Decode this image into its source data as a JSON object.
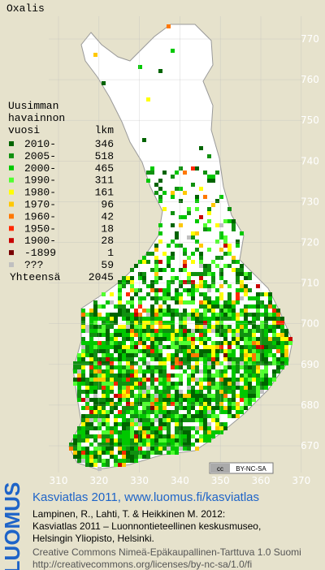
{
  "title": "Oxalis",
  "legend": {
    "header": [
      "Uusimman",
      "havainnon",
      "vuosi"
    ],
    "count_header": "lkm",
    "entries": [
      {
        "label": "2010-",
        "count": 346,
        "color": "#006400"
      },
      {
        "label": "2005-",
        "count": 518,
        "color": "#109010"
      },
      {
        "label": "2000-",
        "count": 465,
        "color": "#00c800"
      },
      {
        "label": "1990-",
        "count": 311,
        "color": "#50ff30"
      },
      {
        "label": "1980-",
        "count": 161,
        "color": "#ffff00"
      },
      {
        "label": "1970-",
        "count": 96,
        "color": "#ffc800"
      },
      {
        "label": "1960-",
        "count": 42,
        "color": "#ff7800"
      },
      {
        "label": "1950-",
        "count": 18,
        "color": "#ff2800"
      },
      {
        "label": "1900-",
        "count": 28,
        "color": "#c80000"
      },
      {
        "label": "-1899",
        "count": 1,
        "color": "#780000"
      },
      {
        "label": "???",
        "count": 59,
        "color": "#c0c0c0"
      }
    ],
    "total_label": "Yhteensä",
    "total": 2045
  },
  "map": {
    "yticks": [
      770,
      760,
      750,
      740,
      730,
      720,
      710,
      700,
      690,
      680,
      670
    ],
    "xticks": [
      310,
      320,
      330,
      340,
      350,
      360,
      370
    ],
    "grid": true
  },
  "license_badge": {
    "icon": "cc",
    "text": "BY-NC-SA"
  },
  "footer": {
    "logo": "LUOMUS",
    "link": "Kasviatlas 2011, www.luomus.fi/kasviatlas",
    "citation": [
      "Lampinen, R., Lahti, T. & Heikkinen M. 2012:",
      "Kasviatlas 2011 – Luonnontieteellinen keskusmuseo,",
      "Helsingin Yliopisto, Helsinki."
    ],
    "license": [
      "Creative Commons Nimeä-Epäkaupallinen-Tarttuva 1.0 Suomi",
      "http://creativecommons.org/licenses/by-nc-sa/1.0/fi"
    ]
  }
}
